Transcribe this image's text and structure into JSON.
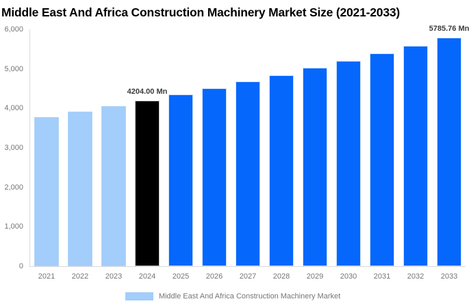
{
  "title": "Middle East And Africa Construction Machinery Market Size (2021-2033)",
  "colors": {
    "historical_bar": "#a3cdfa",
    "base_year_bar": "#000000",
    "forecast_bar": "#0567fc",
    "axis_line": "#d9d9d9",
    "axis_text": "#757575",
    "data_label_text": "#3b3b3b",
    "title_text": "#000000",
    "background": "#ffffff"
  },
  "chart_data": {
    "type": "bar",
    "title": "Middle East And Africa Construction Machinery Market Size (2021-2033)",
    "xlabel": "",
    "ylabel": "",
    "unit": "Mn",
    "categories": [
      "2021",
      "2022",
      "2023",
      "2024",
      "2025",
      "2026",
      "2027",
      "2028",
      "2029",
      "2030",
      "2031",
      "2032",
      "2033"
    ],
    "values": [
      3780,
      3916,
      4057,
      4204.0,
      4356,
      4513,
      4677,
      4846,
      5021,
      5203,
      5391,
      5586,
      5785.76
    ],
    "bar_roles": [
      "historical",
      "historical",
      "historical",
      "base",
      "forecast",
      "forecast",
      "forecast",
      "forecast",
      "forecast",
      "forecast",
      "forecast",
      "forecast",
      "forecast"
    ],
    "palette": {
      "historical": "#a3cdfa",
      "base": "#000000",
      "forecast": "#0567fc"
    },
    "stroke_palette": {
      "historical": "#b3d5fb",
      "base": "#c9c9c9",
      "forecast": "#cbe0fb"
    },
    "point_labels": [
      null,
      null,
      null,
      "4204.00 Mn",
      null,
      null,
      null,
      null,
      null,
      null,
      null,
      null,
      "5785.76 Mn"
    ],
    "ylim": [
      0,
      6000
    ],
    "yticks": [
      "0",
      "1,000",
      "2,000",
      "3,000",
      "4,000",
      "5,000",
      "6,000"
    ],
    "ytick_values": [
      0,
      1000,
      2000,
      3000,
      4000,
      5000,
      6000
    ],
    "grid": false,
    "legend": {
      "position": "bottom",
      "items": [
        {
          "label": "Middle East And Africa Construction Machinery Market",
          "swatch_color": "#a3cdfa"
        }
      ]
    }
  }
}
